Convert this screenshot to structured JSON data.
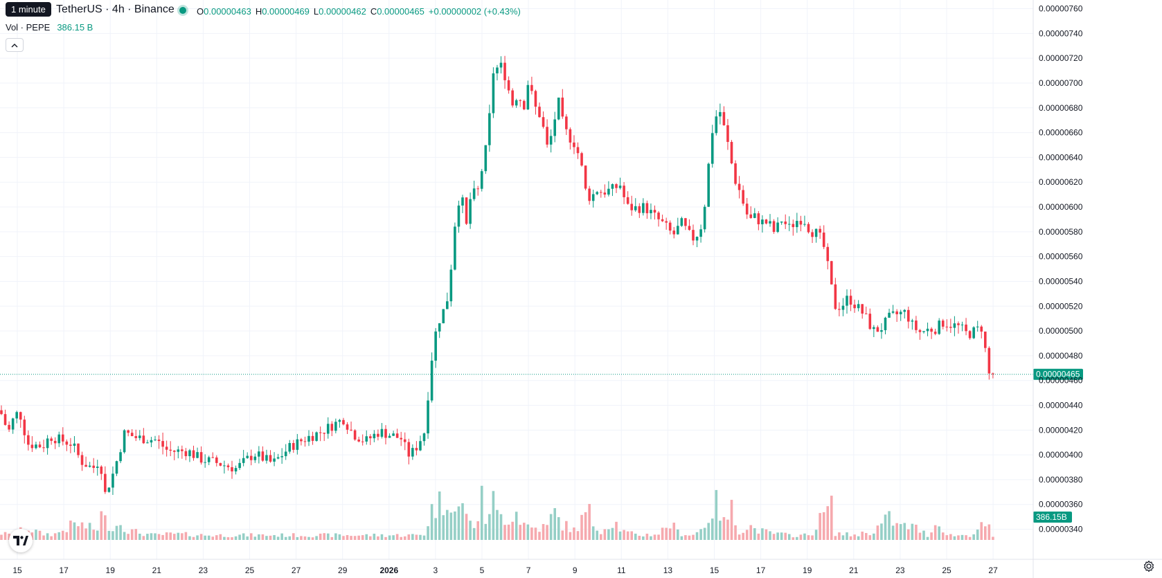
{
  "tooltip": "1 minute",
  "header": {
    "title": "TetherUS · 4h · Binance",
    "ohlc": {
      "o_label": "O",
      "o_value": "0.00000463",
      "h_label": "H",
      "h_value": "0.00000469",
      "l_label": "L",
      "l_value": "0.00000462",
      "c_label": "C",
      "c_value": "0.00000465",
      "change": "+0.00000002 (+0.43%)"
    },
    "volume_label": "Vol · PEPE",
    "volume_value": "386.15 B"
  },
  "colors": {
    "up": "#089981",
    "down": "#f23645",
    "vol_up": "#95cfc6",
    "vol_down": "#f6a9ae",
    "grid": "#f0f3fa",
    "text": "#131722"
  },
  "chart_data": {
    "type": "candlestick",
    "x_ticks": [
      "15",
      "17",
      "19",
      "21",
      "23",
      "25",
      "27",
      "29",
      "2026",
      "3",
      "5",
      "7",
      "9",
      "11",
      "13",
      "15",
      "17",
      "19",
      "21",
      "23",
      "25",
      "27"
    ],
    "y_ticks": [
      "0.00000760",
      "0.00000740",
      "0.00000720",
      "0.00000700",
      "0.00000680",
      "0.00000660",
      "0.00000640",
      "0.00000620",
      "0.00000600",
      "0.00000580",
      "0.00000560",
      "0.00000540",
      "0.00000520",
      "0.00000500",
      "0.00000480",
      "0.00000460",
      "0.00000440",
      "0.00000420",
      "0.00000400",
      "0.00000380",
      "0.00000360",
      "0.00000340"
    ],
    "ylim": [
      3.34e-06,
      7.67e-06
    ],
    "last_price_label": "0.00000465",
    "last_volume_label": "386.15B",
    "candle_interval": "4h",
    "close_path": [
      [
        0,
        4.36
      ],
      [
        12,
        4.18
      ],
      [
        22,
        4.33
      ],
      [
        29,
        4.33
      ],
      [
        40,
        4.09
      ],
      [
        62,
        4.07
      ],
      [
        72,
        4.15
      ],
      [
        87,
        4.12
      ],
      [
        104,
        4.09
      ],
      [
        117,
        3.95
      ],
      [
        134,
        3.89
      ],
      [
        145,
        3.97
      ],
      [
        150,
        3.66
      ],
      [
        164,
        3.86
      ],
      [
        180,
        4.18
      ],
      [
        196,
        4.14
      ],
      [
        225,
        4.12
      ],
      [
        243,
        4.03
      ],
      [
        272,
        4.03
      ],
      [
        288,
        3.97
      ],
      [
        317,
        3.93
      ],
      [
        341,
        3.89
      ],
      [
        367,
        4.01
      ],
      [
        394,
        3.93
      ],
      [
        420,
        4.07
      ],
      [
        444,
        4.14
      ],
      [
        465,
        4.19
      ],
      [
        480,
        4.24
      ],
      [
        496,
        4.29
      ],
      [
        510,
        4.17
      ],
      [
        528,
        4.11
      ],
      [
        548,
        4.19
      ],
      [
        580,
        4.13
      ],
      [
        589,
        4.0
      ],
      [
        598,
        4.03
      ],
      [
        614,
        4.2
      ],
      [
        621,
        4.69
      ],
      [
        631,
        5.05
      ],
      [
        645,
        5.22
      ],
      [
        652,
        5.55
      ],
      [
        657,
        5.87
      ],
      [
        665,
        6.14
      ],
      [
        674,
        5.83
      ],
      [
        681,
        6.15
      ],
      [
        687,
        6.08
      ],
      [
        692,
        6.16
      ],
      [
        699,
        6.42
      ],
      [
        705,
        6.52
      ],
      [
        710,
        7.08
      ],
      [
        718,
        7.12
      ],
      [
        726,
        7.14
      ],
      [
        730,
        7.04
      ],
      [
        740,
        6.83
      ],
      [
        749,
        6.93
      ],
      [
        755,
        6.77
      ],
      [
        763,
        7.02
      ],
      [
        772,
        6.81
      ],
      [
        781,
        6.73
      ],
      [
        791,
        6.46
      ],
      [
        798,
        6.62
      ],
      [
        806,
        6.86
      ],
      [
        814,
        6.64
      ],
      [
        820,
        6.58
      ],
      [
        830,
        6.51
      ],
      [
        838,
        6.38
      ],
      [
        846,
        6.12
      ],
      [
        853,
        6.07
      ],
      [
        862,
        6.14
      ],
      [
        870,
        6.12
      ],
      [
        884,
        6.14
      ],
      [
        896,
        6.18
      ],
      [
        905,
        6.0
      ],
      [
        917,
        5.99
      ],
      [
        931,
        6.0
      ],
      [
        946,
        5.92
      ],
      [
        960,
        5.85
      ],
      [
        972,
        5.77
      ],
      [
        984,
        5.87
      ],
      [
        996,
        5.77
      ],
      [
        1003,
        5.74
      ],
      [
        1012,
        5.84
      ],
      [
        1019,
        6.07
      ],
      [
        1027,
        6.58
      ],
      [
        1038,
        6.81
      ],
      [
        1045,
        6.65
      ],
      [
        1053,
        6.46
      ],
      [
        1060,
        6.24
      ],
      [
        1068,
        6.13
      ],
      [
        1075,
        6.0
      ],
      [
        1082,
        5.89
      ],
      [
        1090,
        5.92
      ],
      [
        1098,
        5.88
      ],
      [
        1110,
        5.87
      ],
      [
        1119,
        5.79
      ],
      [
        1128,
        5.9
      ],
      [
        1140,
        5.83
      ],
      [
        1150,
        5.89
      ],
      [
        1160,
        5.91
      ],
      [
        1170,
        5.81
      ],
      [
        1182,
        5.78
      ],
      [
        1190,
        5.67
      ],
      [
        1198,
        5.44
      ],
      [
        1205,
        5.2
      ],
      [
        1215,
        5.2
      ],
      [
        1225,
        5.27
      ],
      [
        1235,
        5.21
      ],
      [
        1248,
        5.13
      ],
      [
        1261,
        5.0
      ],
      [
        1272,
        5.02
      ],
      [
        1285,
        5.11
      ],
      [
        1298,
        5.14
      ],
      [
        1308,
        5.15
      ],
      [
        1318,
        5.04
      ],
      [
        1328,
        4.99
      ],
      [
        1340,
        5.01
      ],
      [
        1352,
        5.02
      ],
      [
        1362,
        5.07
      ],
      [
        1374,
        5.05
      ],
      [
        1386,
        5.03
      ],
      [
        1397,
        4.97
      ],
      [
        1408,
        5.0
      ],
      [
        1418,
        5.03
      ],
      [
        1428,
        4.65
      ],
      [
        1434,
        4.65
      ]
    ],
    "volume_path": [
      [
        0,
        0.06
      ],
      [
        15,
        0.04
      ],
      [
        40,
        0.1
      ],
      [
        60,
        0.05
      ],
      [
        80,
        0.05
      ],
      [
        110,
        0.14
      ],
      [
        140,
        0.08
      ],
      [
        145,
        0.22
      ],
      [
        150,
        0.17
      ],
      [
        165,
        0.1
      ],
      [
        175,
        0.16
      ],
      [
        185,
        0.08
      ],
      [
        220,
        0.04
      ],
      [
        250,
        0.05
      ],
      [
        300,
        0.04
      ],
      [
        350,
        0.04
      ],
      [
        400,
        0.04
      ],
      [
        450,
        0.04
      ],
      [
        500,
        0.04
      ],
      [
        550,
        0.04
      ],
      [
        600,
        0.04
      ],
      [
        614,
        0.05
      ],
      [
        618,
        0.15
      ],
      [
        625,
        0.28
      ],
      [
        635,
        0.31
      ],
      [
        640,
        0.29
      ],
      [
        645,
        0.38
      ],
      [
        648,
        0.63
      ],
      [
        652,
        0.3
      ],
      [
        658,
        0.23
      ],
      [
        665,
        0.25
      ],
      [
        672,
        0.3
      ],
      [
        680,
        0.11
      ],
      [
        690,
        0.18
      ],
      [
        696,
        0.34
      ],
      [
        702,
        0.14
      ],
      [
        710,
        0.4
      ],
      [
        716,
        0.21
      ],
      [
        725,
        0.2
      ],
      [
        735,
        0.19
      ],
      [
        745,
        0.25
      ],
      [
        755,
        0.14
      ],
      [
        770,
        0.1
      ],
      [
        790,
        0.11
      ],
      [
        800,
        0.24
      ],
      [
        810,
        0.14
      ],
      [
        830,
        0.08
      ],
      [
        850,
        0.25
      ],
      [
        855,
        0.14
      ],
      [
        870,
        0.08
      ],
      [
        885,
        0.17
      ],
      [
        900,
        0.07
      ],
      [
        920,
        0.04
      ],
      [
        950,
        0.05
      ],
      [
        968,
        0.14
      ],
      [
        980,
        0.06
      ],
      [
        1000,
        0.04
      ],
      [
        1015,
        0.1
      ],
      [
        1020,
        0.16
      ],
      [
        1030,
        0.27
      ],
      [
        1037,
        0.31
      ],
      [
        1045,
        0.14
      ],
      [
        1057,
        0.26
      ],
      [
        1065,
        0.08
      ],
      [
        1075,
        0.09
      ],
      [
        1080,
        0.13
      ],
      [
        1090,
        0.09
      ],
      [
        1110,
        0.06
      ],
      [
        1140,
        0.04
      ],
      [
        1170,
        0.04
      ],
      [
        1200,
        0.31
      ],
      [
        1205,
        0.06
      ],
      [
        1230,
        0.04
      ],
      [
        1260,
        0.07
      ],
      [
        1285,
        0.19
      ],
      [
        1295,
        0.12
      ],
      [
        1320,
        0.11
      ],
      [
        1340,
        0.04
      ],
      [
        1358,
        0.18
      ],
      [
        1365,
        0.04
      ],
      [
        1400,
        0.04
      ],
      [
        1425,
        0.14
      ],
      [
        1434,
        0.02
      ]
    ]
  }
}
